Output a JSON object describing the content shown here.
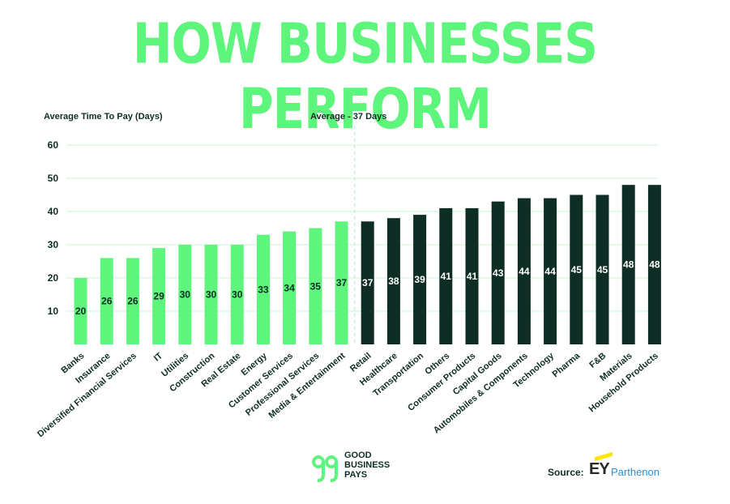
{
  "title": "HOW BUSINESSES PERFORM",
  "chart_data": {
    "type": "bar",
    "ylabel": "Average Time To Pay (Days)",
    "average_label": "Average - 37 Days",
    "average_value": 37,
    "ylim": [
      0,
      60
    ],
    "yticks": [
      10,
      20,
      30,
      40,
      50,
      60
    ],
    "categories": [
      "Banks",
      "Insurance",
      "Diversified Financial Services",
      "IT",
      "Utilities",
      "Construction",
      "Real Estate",
      "Energy",
      "Customer Services",
      "Professional Services",
      "Media & Entertainment",
      "Retail",
      "Healthcare",
      "Transportation",
      "Others",
      "Consumer Products",
      "Capital Goods",
      "Automobiles & Components",
      "Technology",
      "Pharma",
      "F&B",
      "Materials",
      "Household Products"
    ],
    "values": [
      20,
      26,
      26,
      29,
      30,
      30,
      30,
      33,
      34,
      35,
      37,
      37,
      38,
      39,
      41,
      41,
      43,
      44,
      44,
      45,
      45,
      48,
      48
    ],
    "value_labels": [
      "20",
      "26",
      "26",
      "29",
      "30",
      "30",
      "30",
      "33",
      "34",
      "35",
      "37",
      "37",
      "38",
      "39",
      "41",
      "41",
      "43",
      "44",
      "44",
      "45",
      "45",
      "48",
      "48"
    ],
    "colors": {
      "below_average": "#5ef57d",
      "above_average": "#0e2e25",
      "gridline": "#c8f7d2",
      "text": "#0e2e25"
    },
    "below_count": 11
  },
  "logo": {
    "line1": "GOOD",
    "line2": "BUSINESS",
    "line3": "PAYS"
  },
  "footer": {
    "source_label": "Source:",
    "ey": "EY",
    "parthenon": "Parthenon"
  }
}
